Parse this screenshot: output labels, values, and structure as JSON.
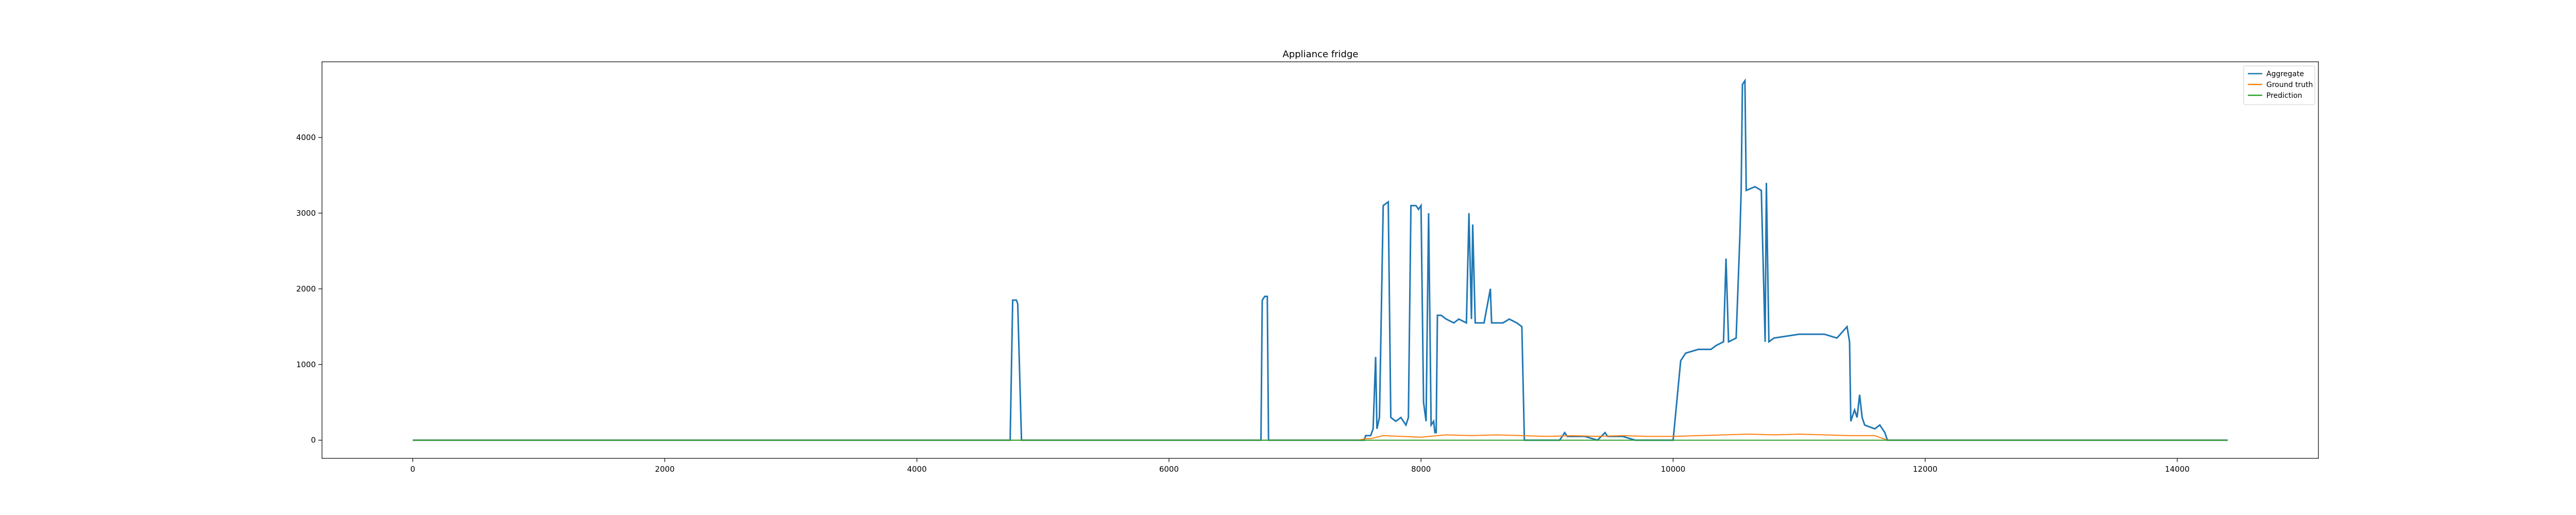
{
  "chart_data": {
    "type": "line",
    "title": "Appliance fridge",
    "xlabel": "",
    "ylabel": "",
    "xlim": [
      -720,
      15120
    ],
    "ylim": [
      -240,
      5000
    ],
    "x_ticks": [
      0,
      2000,
      4000,
      6000,
      8000,
      10000,
      12000,
      14000
    ],
    "y_ticks": [
      0,
      1000,
      2000,
      3000,
      4000
    ],
    "grid": false,
    "legend_position": "top-right",
    "series": [
      {
        "name": "Aggregate",
        "color": "#1f77b4",
        "points": [
          [
            0,
            0
          ],
          [
            4700,
            0
          ],
          [
            4740,
            0
          ],
          [
            4760,
            1850
          ],
          [
            4790,
            1850
          ],
          [
            4800,
            1800
          ],
          [
            4830,
            0
          ],
          [
            6700,
            0
          ],
          [
            6730,
            0
          ],
          [
            6740,
            1850
          ],
          [
            6760,
            1900
          ],
          [
            6780,
            1900
          ],
          [
            6790,
            0
          ],
          [
            7550,
            0
          ],
          [
            7560,
            60
          ],
          [
            7600,
            60
          ],
          [
            7620,
            150
          ],
          [
            7640,
            1100
          ],
          [
            7650,
            150
          ],
          [
            7670,
            300
          ],
          [
            7700,
            3100
          ],
          [
            7740,
            3150
          ],
          [
            7760,
            300
          ],
          [
            7800,
            250
          ],
          [
            7840,
            300
          ],
          [
            7880,
            200
          ],
          [
            7900,
            300
          ],
          [
            7920,
            3100
          ],
          [
            7960,
            3100
          ],
          [
            7980,
            3050
          ],
          [
            8000,
            3100
          ],
          [
            8020,
            500
          ],
          [
            8040,
            250
          ],
          [
            8060,
            3000
          ],
          [
            8080,
            200
          ],
          [
            8100,
            250
          ],
          [
            8110,
            100
          ],
          [
            8120,
            100
          ],
          [
            8130,
            1650
          ],
          [
            8160,
            1650
          ],
          [
            8200,
            1600
          ],
          [
            8260,
            1550
          ],
          [
            8300,
            1600
          ],
          [
            8360,
            1550
          ],
          [
            8380,
            3000
          ],
          [
            8400,
            1600
          ],
          [
            8410,
            2850
          ],
          [
            8430,
            1550
          ],
          [
            8500,
            1550
          ],
          [
            8550,
            2000
          ],
          [
            8560,
            1550
          ],
          [
            8650,
            1550
          ],
          [
            8700,
            1600
          ],
          [
            8760,
            1550
          ],
          [
            8800,
            1500
          ],
          [
            8820,
            0
          ],
          [
            9100,
            0
          ],
          [
            9140,
            100
          ],
          [
            9160,
            50
          ],
          [
            9300,
            50
          ],
          [
            9400,
            0
          ],
          [
            9460,
            100
          ],
          [
            9480,
            50
          ],
          [
            9600,
            50
          ],
          [
            9700,
            0
          ],
          [
            10000,
            0
          ],
          [
            10060,
            1050
          ],
          [
            10100,
            1150
          ],
          [
            10200,
            1200
          ],
          [
            10300,
            1200
          ],
          [
            10340,
            1250
          ],
          [
            10400,
            1300
          ],
          [
            10420,
            2400
          ],
          [
            10440,
            1300
          ],
          [
            10500,
            1350
          ],
          [
            10530,
            2700
          ],
          [
            10540,
            3300
          ],
          [
            10550,
            4700
          ],
          [
            10570,
            4750
          ],
          [
            10580,
            3300
          ],
          [
            10650,
            3350
          ],
          [
            10700,
            3300
          ],
          [
            10730,
            1300
          ],
          [
            10740,
            3400
          ],
          [
            10760,
            1300
          ],
          [
            10800,
            1350
          ],
          [
            11000,
            1400
          ],
          [
            11200,
            1400
          ],
          [
            11300,
            1350
          ],
          [
            11380,
            1500
          ],
          [
            11400,
            1300
          ],
          [
            11410,
            250
          ],
          [
            11440,
            400
          ],
          [
            11460,
            300
          ],
          [
            11480,
            600
          ],
          [
            11500,
            300
          ],
          [
            11520,
            200
          ],
          [
            11600,
            150
          ],
          [
            11640,
            200
          ],
          [
            11680,
            100
          ],
          [
            11700,
            0
          ],
          [
            14400,
            0
          ]
        ]
      },
      {
        "name": "Ground truth",
        "color": "#ff7f0e",
        "points": [
          [
            0,
            0
          ],
          [
            7500,
            0
          ],
          [
            7560,
            20
          ],
          [
            7600,
            20
          ],
          [
            7700,
            60
          ],
          [
            8000,
            40
          ],
          [
            8200,
            70
          ],
          [
            8400,
            60
          ],
          [
            8600,
            70
          ],
          [
            8800,
            60
          ],
          [
            9000,
            50
          ],
          [
            9200,
            60
          ],
          [
            9400,
            50
          ],
          [
            9600,
            60
          ],
          [
            9800,
            50
          ],
          [
            10000,
            50
          ],
          [
            10200,
            60
          ],
          [
            10400,
            70
          ],
          [
            10600,
            80
          ],
          [
            10800,
            70
          ],
          [
            11000,
            80
          ],
          [
            11200,
            70
          ],
          [
            11400,
            60
          ],
          [
            11600,
            60
          ],
          [
            11700,
            0
          ],
          [
            14400,
            0
          ]
        ]
      },
      {
        "name": "Prediction",
        "color": "#2ca02c",
        "points": [
          [
            0,
            0
          ],
          [
            13400,
            0
          ],
          [
            14400,
            0
          ]
        ]
      }
    ]
  }
}
